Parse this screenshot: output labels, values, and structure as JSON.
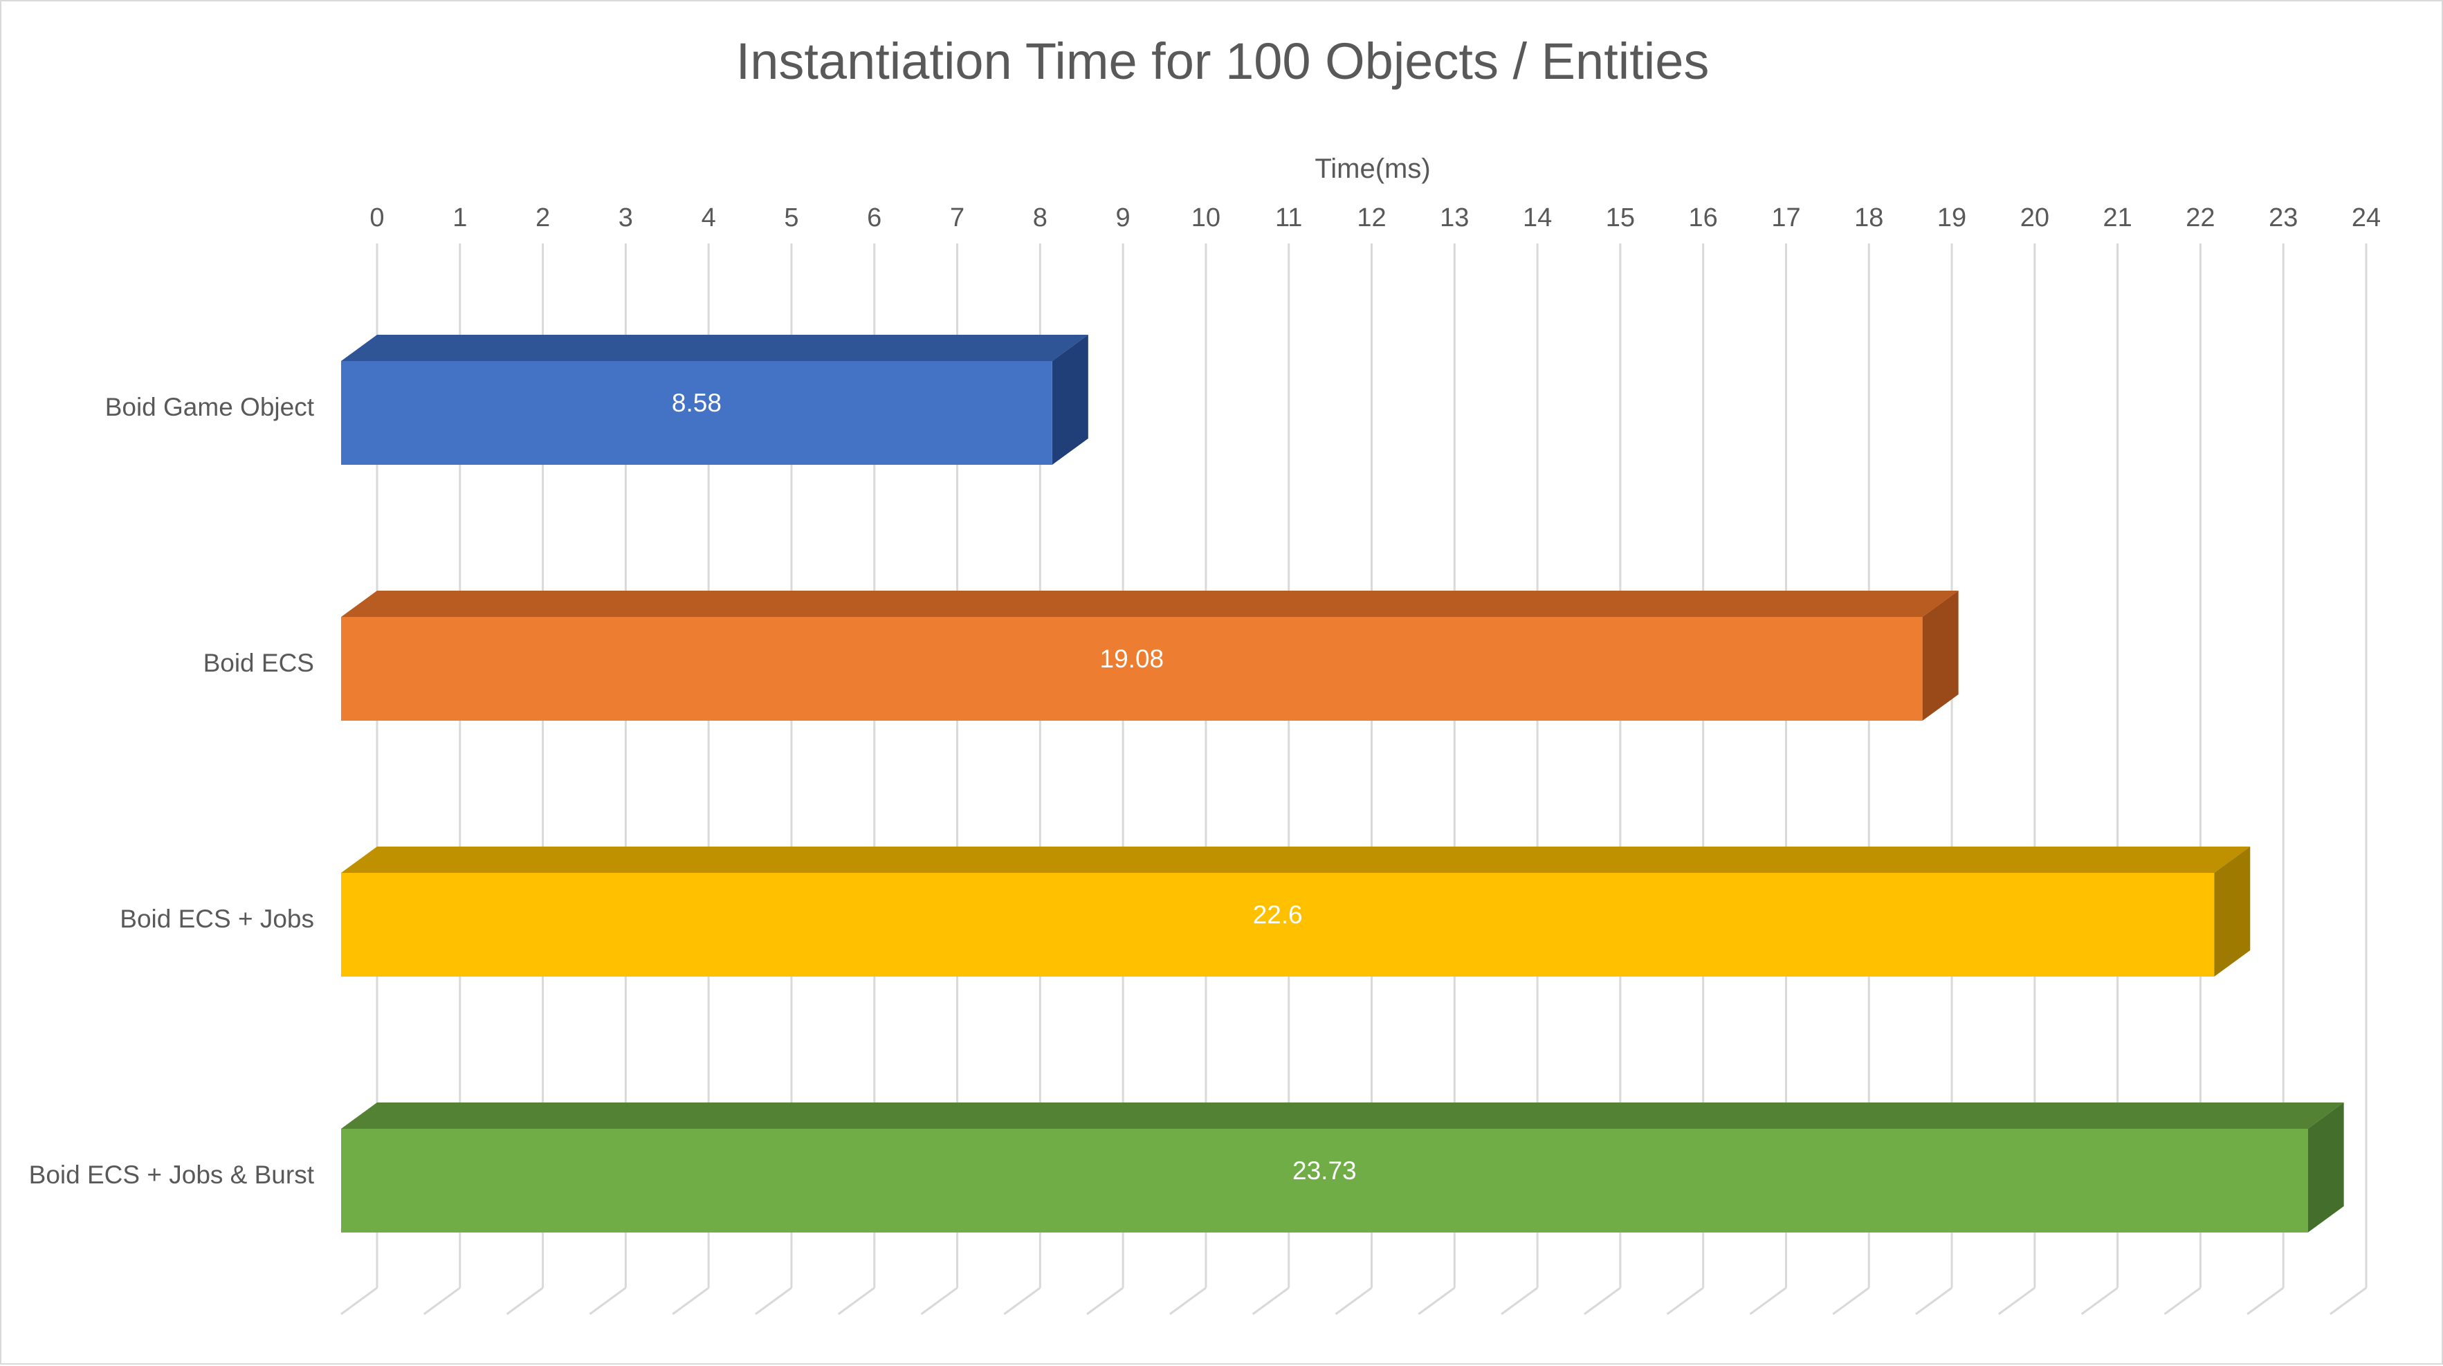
{
  "chart_data": {
    "type": "bar",
    "orientation": "horizontal",
    "style": "3d",
    "title": "Instantiation Time for 100 Objects / Entities",
    "xlabel": "Time(ms)",
    "ylabel": "",
    "xlim": [
      0,
      24
    ],
    "x_ticks": [
      "0",
      "1",
      "2",
      "3",
      "4",
      "5",
      "6",
      "7",
      "8",
      "9",
      "10",
      "11",
      "12",
      "13",
      "14",
      "15",
      "16",
      "17",
      "18",
      "19",
      "20",
      "21",
      "22",
      "23",
      "24"
    ],
    "x_axis_position": "top",
    "grid": true,
    "legend": "none",
    "categories": [
      "Boid Game Object",
      "Boid ECS",
      "Boid ECS + Jobs",
      "Boid ECS + Jobs & Burst"
    ],
    "values": [
      8.58,
      19.08,
      22.6,
      23.73
    ],
    "data_labels": [
      "8.58",
      "19.08",
      "22.6",
      "23.73"
    ],
    "colors": [
      "#4472c4",
      "#ed7d31",
      "#ffc000",
      "#70ad47"
    ],
    "top_colors": [
      "#2f5597",
      "#b85c22",
      "#bf9000",
      "#548235"
    ],
    "side_colors": [
      "#203e78",
      "#9a4a18",
      "#9e7a00",
      "#446e2b"
    ]
  }
}
